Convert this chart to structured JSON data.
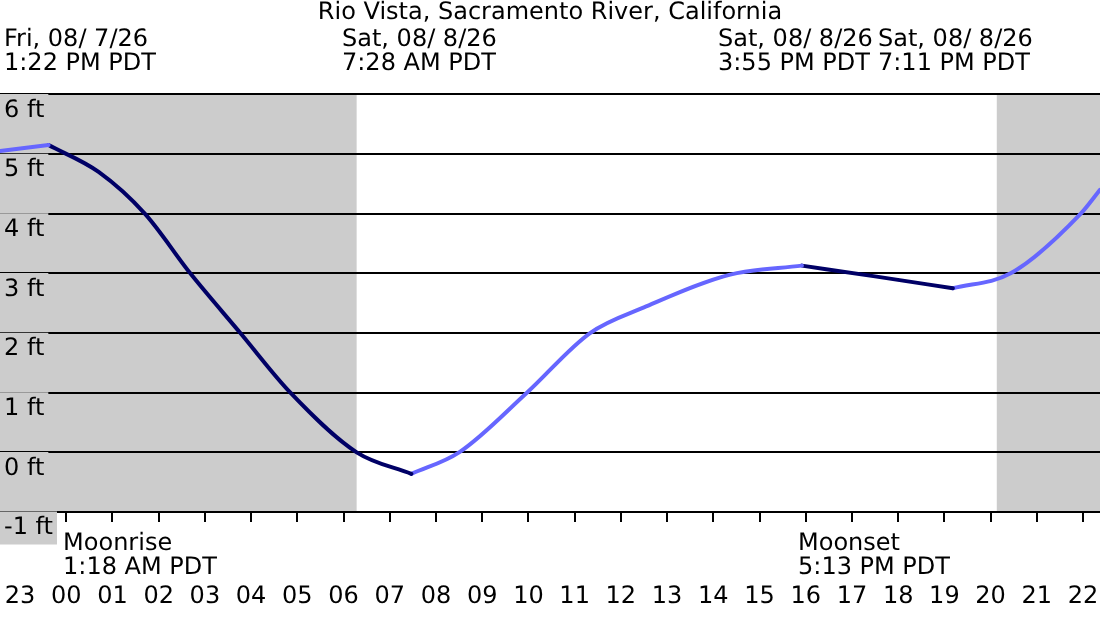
{
  "chart_data": {
    "type": "line",
    "title": "Rio Vista, Sacramento River, California",
    "xlim": [
      "--08-07T22:34",
      "--08-08T22:22"
    ],
    "xticks": [
      {
        "value": "--08-07T23:00",
        "label": "23"
      },
      {
        "value": "--08-08T00:00",
        "label": "00"
      },
      {
        "value": "--08-08T01:00",
        "label": "01"
      },
      {
        "value": "--08-08T02:00",
        "label": "02"
      },
      {
        "value": "--08-08T03:00",
        "label": "03"
      },
      {
        "value": "--08-08T04:00",
        "label": "04"
      },
      {
        "value": "--08-08T05:00",
        "label": "05"
      },
      {
        "value": "--08-08T06:00",
        "label": "06"
      },
      {
        "value": "--08-08T07:00",
        "label": "07"
      },
      {
        "value": "--08-08T08:00",
        "label": "08"
      },
      {
        "value": "--08-08T09:00",
        "label": "09"
      },
      {
        "value": "--08-08T10:00",
        "label": "10"
      },
      {
        "value": "--08-08T11:00",
        "label": "11"
      },
      {
        "value": "--08-08T12:00",
        "label": "12"
      },
      {
        "value": "--08-08T13:00",
        "label": "13"
      },
      {
        "value": "--08-08T14:00",
        "label": "14"
      },
      {
        "value": "--08-08T15:00",
        "label": "15"
      },
      {
        "value": "--08-08T16:00",
        "label": "16"
      },
      {
        "value": "--08-08T17:00",
        "label": "17"
      },
      {
        "value": "--08-08T18:00",
        "label": "18"
      },
      {
        "value": "--08-08T19:00",
        "label": "19"
      },
      {
        "value": "--08-08T20:00",
        "label": "20"
      },
      {
        "value": "--08-08T21:00",
        "label": "21"
      },
      {
        "value": "--08-08T22:00",
        "label": "22"
      }
    ],
    "ylim": [
      -1,
      6
    ],
    "yticks": [
      {
        "value": -1,
        "label": "-1 ft"
      },
      {
        "value": 0,
        "label": "0 ft"
      },
      {
        "value": 1,
        "label": "1 ft"
      },
      {
        "value": 2,
        "label": "2 ft"
      },
      {
        "value": 3,
        "label": "3 ft"
      },
      {
        "value": 4,
        "label": "4 ft"
      },
      {
        "value": 5,
        "label": "5 ft"
      },
      {
        "value": 6,
        "label": "6 ft"
      }
    ],
    "grid": "y",
    "series": [
      {
        "color": "#6666ff",
        "x": [
          "--08-07T22:34",
          "--08-07T23:37"
        ],
        "values": [
          5.05,
          5.15
        ]
      },
      {
        "color": "#000066",
        "x": [
          "--08-07T23:37",
          "--08-08T00:42",
          "--08-08T01:42",
          "--08-08T02:41",
          "--08-08T03:46",
          "--08-08T04:51",
          "--08-08T06:17",
          "--08-08T07:28"
        ],
        "values": [
          5.15,
          4.7,
          4.0,
          3.0,
          2.0,
          1.0,
          0.0,
          -0.36
        ]
      },
      {
        "color": "#6666ff",
        "x": [
          "--08-08T07:28",
          "--08-08T08:30",
          "--08-08T09:58",
          "--08-08T11:20",
          "--08-08T12:30",
          "--08-08T14:22",
          "--08-08T15:55"
        ],
        "values": [
          -0.36,
          0.0,
          1.0,
          2.0,
          2.43,
          2.98,
          3.13
        ]
      },
      {
        "color": "#000066",
        "x": [
          "--08-08T15:55",
          "--08-08T17:30",
          "--08-08T19:11"
        ],
        "values": [
          3.13,
          2.95,
          2.75
        ]
      },
      {
        "color": "#6666ff",
        "x": [
          "--08-08T19:11",
          "--08-08T20:26",
          "--08-08T21:57",
          "--08-08T22:22"
        ],
        "values": [
          2.75,
          3.0,
          4.0,
          4.4
        ]
      }
    ],
    "bands": [
      {
        "axis": "x",
        "from": "--08-07T22:34",
        "to": "--08-08T06:17",
        "color": "#cccccc"
      },
      {
        "axis": "x",
        "from": "--08-08T20:08",
        "to": "--08-08T22:22",
        "color": "#cccccc"
      }
    ],
    "annotations": [
      "Fri, 08/ 7/26\n1:22 PM PDT",
      "Sat, 08/ 8/26\n7:28 AM PDT",
      "Sat, 08/ 8/26\n3:55 PM PDT",
      "Sat, 08/ 8/26\n7:11 PM PDT",
      "Moonrise\n1:18 AM PDT",
      "Moonset\n5:13 PM PDT"
    ],
    "legend": false
  }
}
